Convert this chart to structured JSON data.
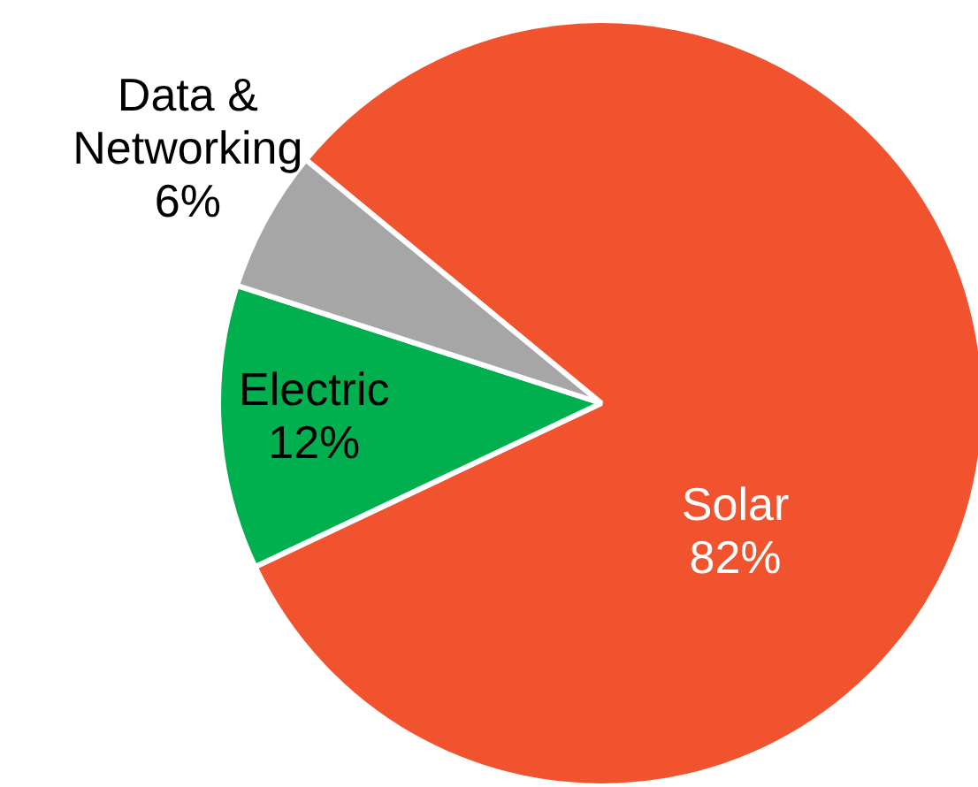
{
  "chart_data": {
    "type": "pie",
    "categories": [
      "Solar",
      "Electric",
      "Data & Networking"
    ],
    "values": [
      82,
      12,
      6
    ],
    "colors": [
      "#f0532e",
      "#00b04f",
      "#a6a6a6"
    ],
    "value_labels": [
      "82%",
      "12%",
      "6%"
    ],
    "legend": false
  }
}
